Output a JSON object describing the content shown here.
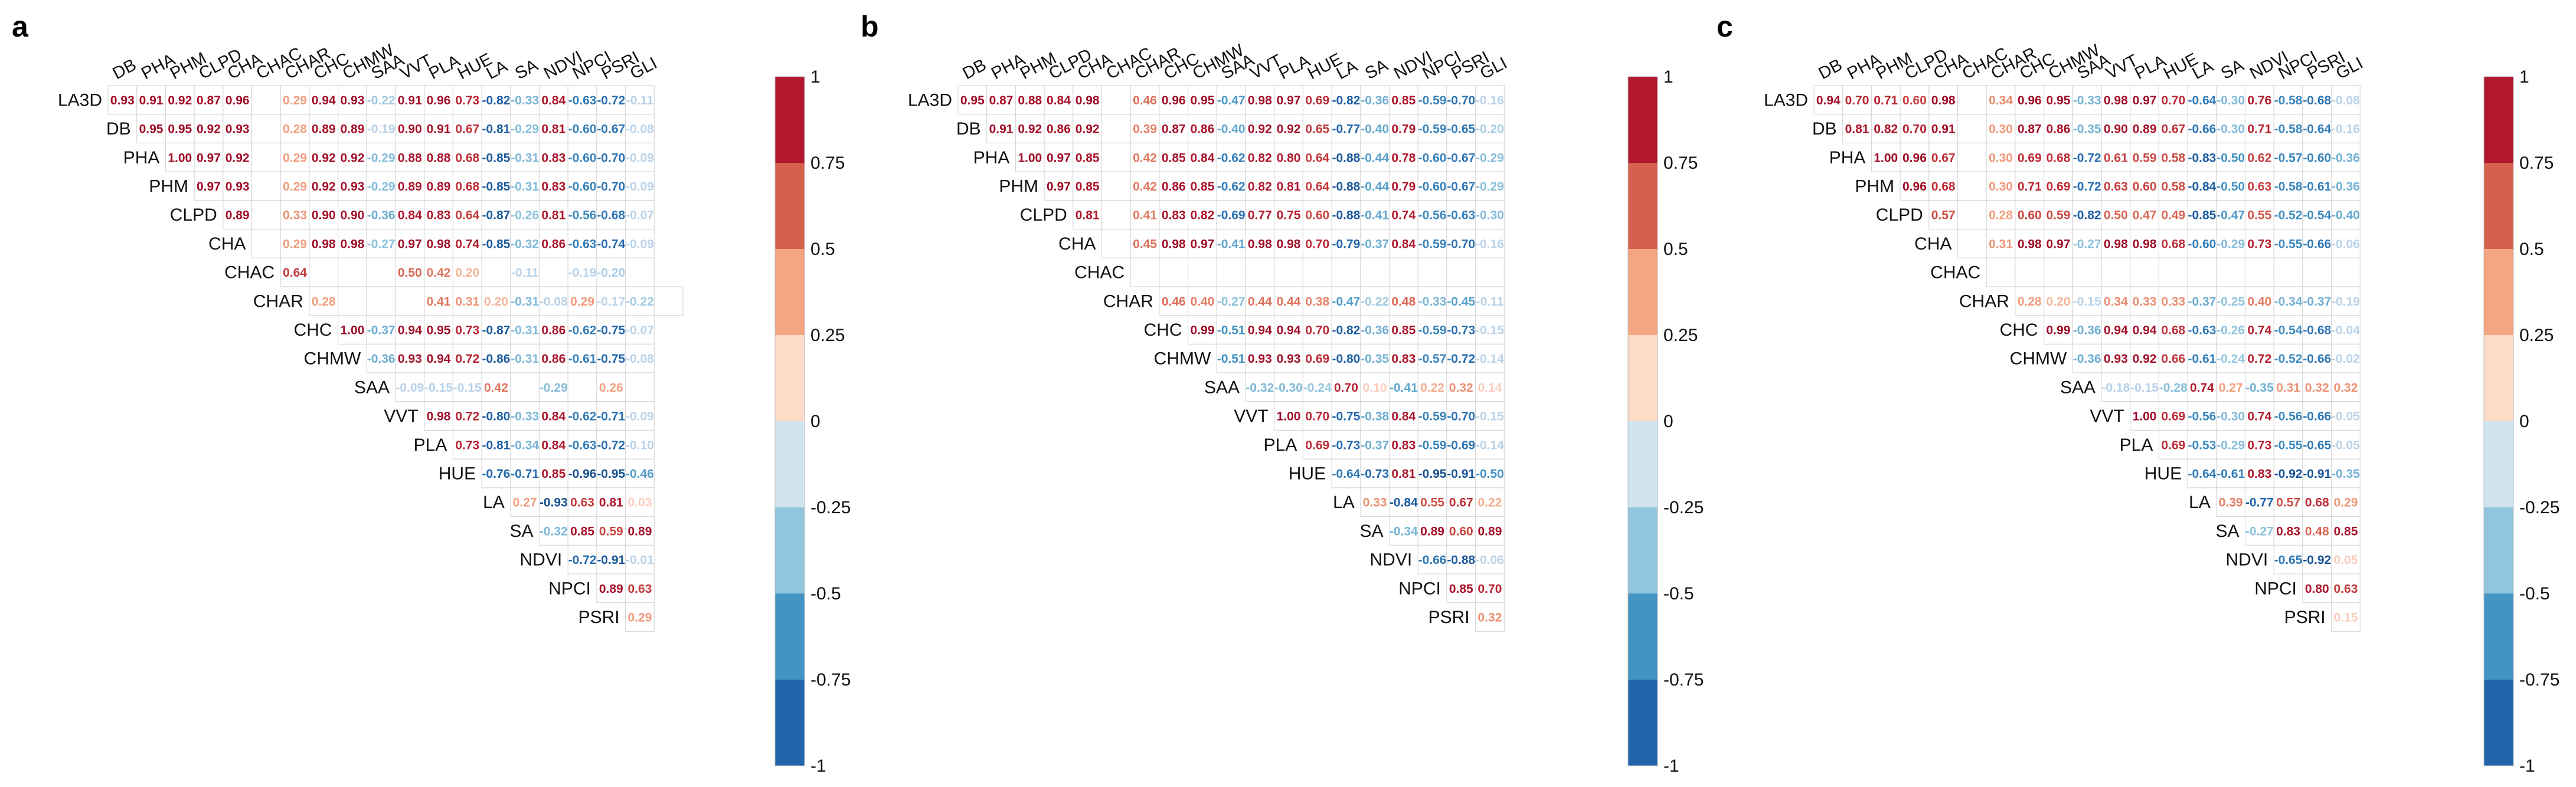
{
  "chart_data": {
    "type": "heatmap",
    "variables": [
      "LA3D",
      "DB",
      "PHA",
      "PHM",
      "CLPD",
      "CHA",
      "CHAC",
      "CHAR",
      "CHC",
      "CHMW",
      "SAA",
      "VVT",
      "PLA",
      "HUE",
      "LA",
      "SA",
      "NDVI",
      "NPCI",
      "PSRI",
      "GLI"
    ],
    "colorbar": {
      "range": [
        -1,
        1
      ],
      "ticks": [
        "1",
        "0.75",
        "0.5",
        "0.25",
        "0",
        "-0.25",
        "-0.5",
        "-0.75",
        "-1"
      ],
      "colors": [
        "#2166ac",
        "#4393c3",
        "#92c5de",
        "#d1e5f0",
        "#fddbc7",
        "#f4a582",
        "#d6604d",
        "#b2182b"
      ]
    },
    "panels": [
      {
        "label": "a",
        "rows": [
          [
            0.93,
            0.91,
            0.92,
            0.87,
            0.96,
            null,
            0.29,
            0.94,
            0.93,
            -0.22,
            0.91,
            0.96,
            0.73,
            -0.82,
            -0.33,
            0.84,
            -0.63,
            -0.72,
            -0.11
          ],
          [
            0.95,
            0.95,
            0.92,
            0.93,
            null,
            0.28,
            0.89,
            0.89,
            -0.19,
            0.9,
            0.91,
            0.67,
            -0.81,
            -0.29,
            0.81,
            -0.6,
            -0.67,
            -0.08
          ],
          [
            1.0,
            0.97,
            0.92,
            null,
            0.29,
            0.92,
            0.92,
            -0.29,
            0.88,
            0.88,
            0.68,
            -0.85,
            -0.31,
            0.83,
            -0.6,
            -0.7,
            -0.09
          ],
          [
            0.97,
            0.93,
            null,
            0.29,
            0.92,
            0.93,
            -0.29,
            0.89,
            0.89,
            0.68,
            -0.85,
            -0.31,
            0.83,
            -0.6,
            -0.7,
            -0.09
          ],
          [
            0.89,
            null,
            0.33,
            0.9,
            0.9,
            -0.36,
            0.84,
            0.83,
            0.64,
            -0.87,
            -0.26,
            0.81,
            -0.56,
            -0.68,
            -0.07
          ],
          [
            null,
            0.29,
            0.98,
            0.98,
            -0.27,
            0.97,
            0.98,
            0.74,
            -0.85,
            -0.32,
            0.86,
            -0.63,
            -0.74,
            -0.09
          ],
          [
            0.64,
            null,
            null,
            null,
            0.5,
            0.42,
            0.2,
            null,
            -0.11,
            null,
            -0.19,
            -0.2,
            null
          ],
          [
            0.28,
            null,
            null,
            null,
            0.41,
            0.31,
            0.2,
            -0.31,
            -0.08,
            0.29,
            -0.17,
            -0.22,
            null
          ],
          [
            1.0,
            -0.37,
            0.94,
            0.95,
            0.73,
            -0.87,
            -0.31,
            0.86,
            -0.62,
            -0.75,
            -0.07
          ],
          [
            -0.36,
            0.93,
            0.94,
            0.72,
            -0.86,
            -0.31,
            0.86,
            -0.61,
            -0.75,
            -0.08
          ],
          [
            -0.09,
            -0.15,
            -0.15,
            0.42,
            null,
            -0.29,
            null,
            0.26,
            null
          ],
          [
            0.98,
            0.72,
            -0.8,
            -0.33,
            0.84,
            -0.62,
            -0.71,
            -0.09
          ],
          [
            0.73,
            -0.81,
            -0.34,
            0.84,
            -0.63,
            -0.72,
            -0.1
          ],
          [
            -0.76,
            -0.71,
            0.85,
            -0.96,
            -0.95,
            -0.46
          ],
          [
            0.27,
            -0.93,
            0.63,
            0.81,
            0.03
          ],
          [
            -0.32,
            0.85,
            0.59,
            0.89
          ],
          [
            -0.72,
            -0.91,
            -0.01
          ],
          [
            0.89,
            0.63
          ],
          [
            0.29
          ]
        ]
      },
      {
        "label": "b",
        "rows": [
          [
            0.95,
            0.87,
            0.88,
            0.84,
            0.98,
            null,
            0.46,
            0.96,
            0.95,
            -0.47,
            0.98,
            0.97,
            0.69,
            -0.82,
            -0.36,
            0.85,
            -0.59,
            -0.7,
            -0.16
          ],
          [
            0.91,
            0.92,
            0.86,
            0.92,
            null,
            0.39,
            0.87,
            0.86,
            -0.4,
            0.92,
            0.92,
            0.65,
            -0.77,
            -0.4,
            0.79,
            -0.59,
            -0.65,
            -0.2
          ],
          [
            1.0,
            0.97,
            0.85,
            null,
            0.42,
            0.85,
            0.84,
            -0.62,
            0.82,
            0.8,
            0.64,
            -0.88,
            -0.44,
            0.78,
            -0.6,
            -0.67,
            -0.29
          ],
          [
            0.97,
            0.85,
            null,
            0.42,
            0.86,
            0.85,
            -0.62,
            0.82,
            0.81,
            0.64,
            -0.88,
            -0.44,
            0.79,
            -0.6,
            -0.67,
            -0.29
          ],
          [
            0.81,
            null,
            0.41,
            0.83,
            0.82,
            -0.69,
            0.77,
            0.75,
            0.6,
            -0.88,
            -0.41,
            0.74,
            -0.56,
            -0.63,
            -0.3
          ],
          [
            null,
            0.45,
            0.98,
            0.97,
            -0.41,
            0.98,
            0.98,
            0.7,
            -0.79,
            -0.37,
            0.84,
            -0.59,
            -0.7,
            -0.16
          ],
          [
            null,
            null,
            null,
            null,
            null,
            null,
            null,
            null,
            null,
            null,
            null,
            null,
            null
          ],
          [
            0.46,
            0.4,
            -0.27,
            0.44,
            0.44,
            0.38,
            -0.47,
            -0.22,
            0.48,
            -0.33,
            -0.45,
            -0.11
          ],
          [
            0.99,
            -0.51,
            0.94,
            0.94,
            0.7,
            -0.82,
            -0.36,
            0.85,
            -0.59,
            -0.73,
            -0.15
          ],
          [
            -0.51,
            0.93,
            0.93,
            0.69,
            -0.8,
            -0.35,
            0.83,
            -0.57,
            -0.72,
            -0.14
          ],
          [
            -0.32,
            -0.3,
            -0.24,
            0.7,
            0.1,
            -0.41,
            0.22,
            0.32,
            0.14
          ],
          [
            1.0,
            0.7,
            -0.75,
            -0.38,
            0.84,
            -0.59,
            -0.7,
            -0.15
          ],
          [
            0.69,
            -0.73,
            -0.37,
            0.83,
            -0.59,
            -0.69,
            -0.14
          ],
          [
            -0.64,
            -0.73,
            0.81,
            -0.95,
            -0.91,
            -0.5
          ],
          [
            0.33,
            -0.84,
            0.55,
            0.67,
            0.22
          ],
          [
            -0.34,
            0.89,
            0.6,
            0.89
          ],
          [
            -0.66,
            -0.88,
            -0.06
          ],
          [
            0.85,
            0.7
          ],
          [
            0.32
          ]
        ]
      },
      {
        "label": "c",
        "rows": [
          [
            0.94,
            0.7,
            0.71,
            0.6,
            0.98,
            null,
            0.34,
            0.96,
            0.95,
            -0.33,
            0.98,
            0.97,
            0.7,
            -0.64,
            -0.3,
            0.76,
            -0.58,
            -0.68,
            -0.08
          ],
          [
            0.81,
            0.82,
            0.7,
            0.91,
            null,
            0.3,
            0.87,
            0.86,
            -0.35,
            0.9,
            0.89,
            0.67,
            -0.66,
            -0.3,
            0.71,
            -0.58,
            -0.64,
            -0.16
          ],
          [
            1.0,
            0.96,
            0.67,
            null,
            0.3,
            0.69,
            0.68,
            -0.72,
            0.61,
            0.59,
            0.58,
            -0.83,
            -0.5,
            0.62,
            -0.57,
            -0.6,
            -0.36
          ],
          [
            0.96,
            0.68,
            null,
            0.3,
            0.71,
            0.69,
            -0.72,
            0.63,
            0.6,
            0.58,
            -0.84,
            -0.5,
            0.63,
            -0.58,
            -0.61,
            -0.36
          ],
          [
            0.57,
            null,
            0.28,
            0.6,
            0.59,
            -0.82,
            0.5,
            0.47,
            0.49,
            -0.85,
            -0.47,
            0.55,
            -0.52,
            -0.54,
            -0.4
          ],
          [
            null,
            0.31,
            0.98,
            0.97,
            -0.27,
            0.98,
            0.98,
            0.68,
            -0.6,
            -0.29,
            0.73,
            -0.55,
            -0.66,
            -0.06
          ],
          [
            null,
            null,
            null,
            null,
            null,
            null,
            null,
            null,
            null,
            null,
            null,
            null,
            null
          ],
          [
            0.28,
            0.2,
            -0.15,
            0.34,
            0.33,
            0.33,
            -0.37,
            -0.25,
            0.4,
            -0.34,
            -0.37,
            -0.19
          ],
          [
            0.99,
            -0.36,
            0.94,
            0.94,
            0.68,
            -0.63,
            -0.26,
            0.74,
            -0.54,
            -0.68,
            -0.04
          ],
          [
            -0.36,
            0.93,
            0.92,
            0.66,
            -0.61,
            -0.24,
            0.72,
            -0.52,
            -0.66,
            -0.02
          ],
          [
            -0.18,
            -0.15,
            -0.28,
            0.74,
            0.27,
            -0.35,
            0.31,
            0.32,
            0.32
          ],
          [
            1.0,
            0.69,
            -0.56,
            -0.3,
            0.74,
            -0.56,
            -0.66,
            -0.05
          ],
          [
            0.69,
            -0.53,
            -0.29,
            0.73,
            -0.55,
            -0.65,
            -0.05
          ],
          [
            -0.64,
            -0.61,
            0.83,
            -0.92,
            -0.91,
            -0.35
          ],
          [
            0.39,
            -0.77,
            0.57,
            0.68,
            0.29
          ],
          [
            -0.27,
            0.83,
            0.48,
            0.85
          ],
          [
            -0.65,
            -0.92,
            0.05
          ],
          [
            0.8,
            0.63
          ],
          [
            0.15
          ]
        ]
      }
    ]
  }
}
